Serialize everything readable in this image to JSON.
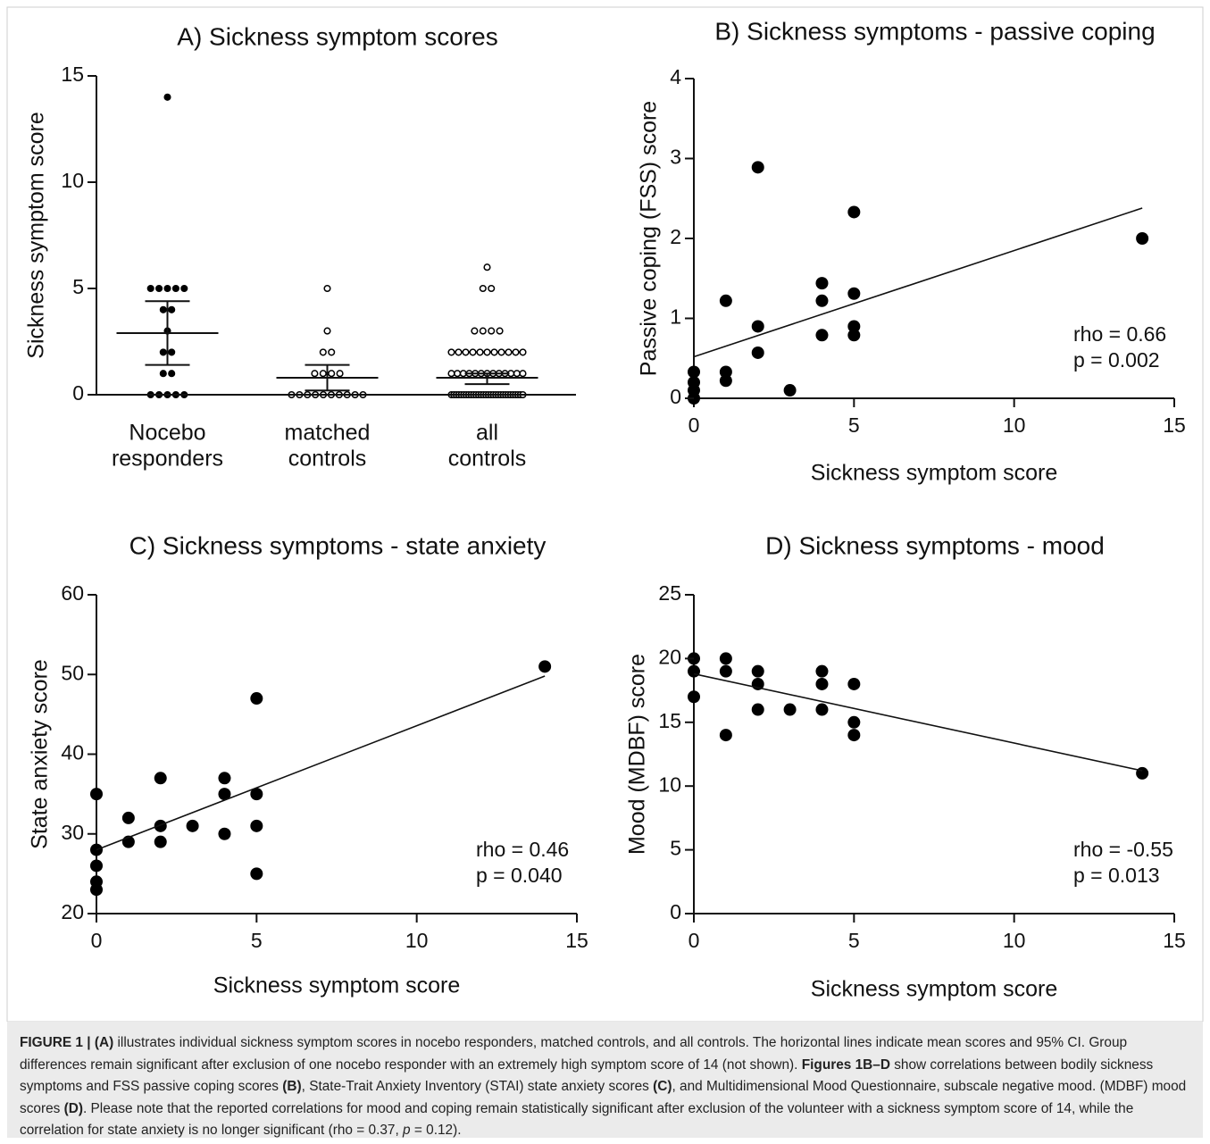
{
  "charts": [
    {
      "type": "dot",
      "title": "A) Sickness symptom scores",
      "ylabel": "Sickness symptom score",
      "categories": [
        [
          "Nocebo",
          "responders"
        ],
        [
          "matched",
          "controls"
        ],
        [
          "all",
          "controls"
        ]
      ],
      "ylim": [
        0,
        15
      ],
      "yticks": [
        0,
        5,
        10,
        15
      ],
      "filled": [
        true,
        false,
        false
      ],
      "color": "#000000",
      "values": [
        [
          14,
          5,
          5,
          5,
          5,
          5,
          4,
          4,
          3,
          2,
          2,
          1,
          1,
          0,
          0,
          0,
          0,
          0
        ],
        [
          5,
          3,
          2,
          2,
          1,
          1,
          1,
          1,
          0,
          0,
          0,
          0,
          0,
          0,
          0,
          0,
          0,
          0
        ],
        [
          6,
          5,
          5,
          3,
          3,
          3,
          3,
          2,
          2,
          2,
          2,
          2,
          2,
          2,
          2,
          2,
          2,
          2,
          1,
          1,
          1,
          1,
          1,
          1,
          1,
          1,
          1,
          1,
          1,
          1,
          1,
          0,
          0,
          0,
          0,
          0,
          0,
          0,
          0,
          0,
          0,
          0,
          0,
          0,
          0,
          0,
          0,
          0,
          0,
          0,
          0,
          0,
          0,
          0,
          0,
          0,
          0,
          0,
          0,
          0,
          0
        ]
      ],
      "mean": [
        2.9,
        0.8,
        0.8
      ],
      "ci_low": [
        1.4,
        0.2,
        0.5
      ],
      "ci_high": [
        4.4,
        1.4,
        1.0
      ]
    },
    {
      "type": "scatter",
      "title": "B) Sickness symptoms - passive coping",
      "xlabel": "Sickness symptom score",
      "ylabel": "Passive coping (FSS) score",
      "x": [
        0,
        0,
        0,
        0,
        1,
        1,
        1,
        2,
        2,
        2,
        3,
        4,
        4,
        4,
        5,
        5,
        5,
        5,
        14
      ],
      "y": [
        0,
        0.1,
        0.2,
        0.33,
        0.22,
        0.33,
        1.22,
        0.57,
        0.9,
        2.89,
        0.1,
        0.79,
        1.22,
        1.44,
        0.79,
        0.9,
        1.31,
        2.33,
        2.0
      ],
      "xlim": [
        0,
        15
      ],
      "ylim": [
        0,
        4
      ],
      "xticks": [
        0,
        5,
        10,
        15
      ],
      "yticks": [
        0,
        1,
        2,
        3,
        4
      ],
      "color": "#000000",
      "fit_line": {
        "x": [
          0,
          14
        ],
        "y": [
          0.52,
          2.38
        ]
      },
      "annotations": [
        "rho = 0.66",
        "p = 0.002"
      ]
    },
    {
      "type": "scatter",
      "title": "C) Sickness symptoms - state anxiety",
      "xlabel": "Sickness symptom score",
      "ylabel": "State anxiety score",
      "x": [
        0,
        0,
        0,
        0,
        0,
        1,
        1,
        2,
        2,
        2,
        3,
        4,
        4,
        4,
        5,
        5,
        5,
        5,
        14
      ],
      "y": [
        35,
        28,
        26,
        24,
        23,
        32,
        29,
        37,
        31,
        29,
        31,
        37,
        35,
        30,
        47,
        35,
        31,
        25,
        51
      ],
      "xlim": [
        0,
        15
      ],
      "ylim": [
        20,
        60
      ],
      "xticks": [
        0,
        5,
        10,
        15
      ],
      "yticks": [
        20,
        30,
        40,
        50,
        60
      ],
      "color": "#000000",
      "fit_line": {
        "x": [
          0,
          14
        ],
        "y": [
          28,
          49.8
        ]
      },
      "annotations": [
        "rho = 0.46",
        "p = 0.040"
      ]
    },
    {
      "type": "scatter",
      "title": "D) Sickness symptoms - mood",
      "xlabel": "Sickness symptom score",
      "ylabel": "Mood (MDBF) score",
      "x": [
        0,
        0,
        0,
        1,
        1,
        1,
        2,
        2,
        2,
        3,
        4,
        4,
        4,
        5,
        5,
        5,
        14
      ],
      "y": [
        20,
        19,
        17,
        20,
        19,
        14,
        19,
        18,
        16,
        16,
        19,
        18,
        16,
        18,
        15,
        14,
        11
      ],
      "xlim": [
        0,
        15
      ],
      "ylim": [
        0,
        25
      ],
      "xticks": [
        0,
        5,
        10,
        15
      ],
      "yticks": [
        0,
        5,
        10,
        15,
        20,
        25
      ],
      "color": "#000000",
      "fit_line": {
        "x": [
          0,
          14
        ],
        "y": [
          18.8,
          11.2
        ]
      },
      "annotations": [
        "rho = -0.55",
        "p = 0.013"
      ]
    }
  ],
  "caption": [
    {
      "text": "FIGURE 1 | (A)",
      "bold": true
    },
    {
      "text": " illustrates individual sickness symptom scores in nocebo responders, matched controls, and all controls. The horizontal lines indicate mean scores and 95% CI. Group differences remain significant after exclusion of one nocebo responder with an extremely high symptom score of 14 (not shown). "
    },
    {
      "text": "Figures 1B–D",
      "bold": true
    },
    {
      "text": " show correlations between bodily sickness symptoms and FSS passive coping scores "
    },
    {
      "text": "(B)",
      "bold": true
    },
    {
      "text": ", State-Trait Anxiety Inventory (STAI) state anxiety scores "
    },
    {
      "text": "(C)",
      "bold": true
    },
    {
      "text": ", and Multidimensional Mood Questionnaire, subscale negative mood. (MDBF) mood scores "
    },
    {
      "text": "(D)",
      "bold": true
    },
    {
      "text": ". Please note that the reported correlations for mood and coping remain statistically significant after exclusion of the volunteer with a sickness symptom score of 14, while the correlation for state anxiety is no longer significant (rho = 0.37, "
    },
    {
      "text": "p",
      "italic": true
    },
    {
      "text": " = 0.12)."
    }
  ]
}
